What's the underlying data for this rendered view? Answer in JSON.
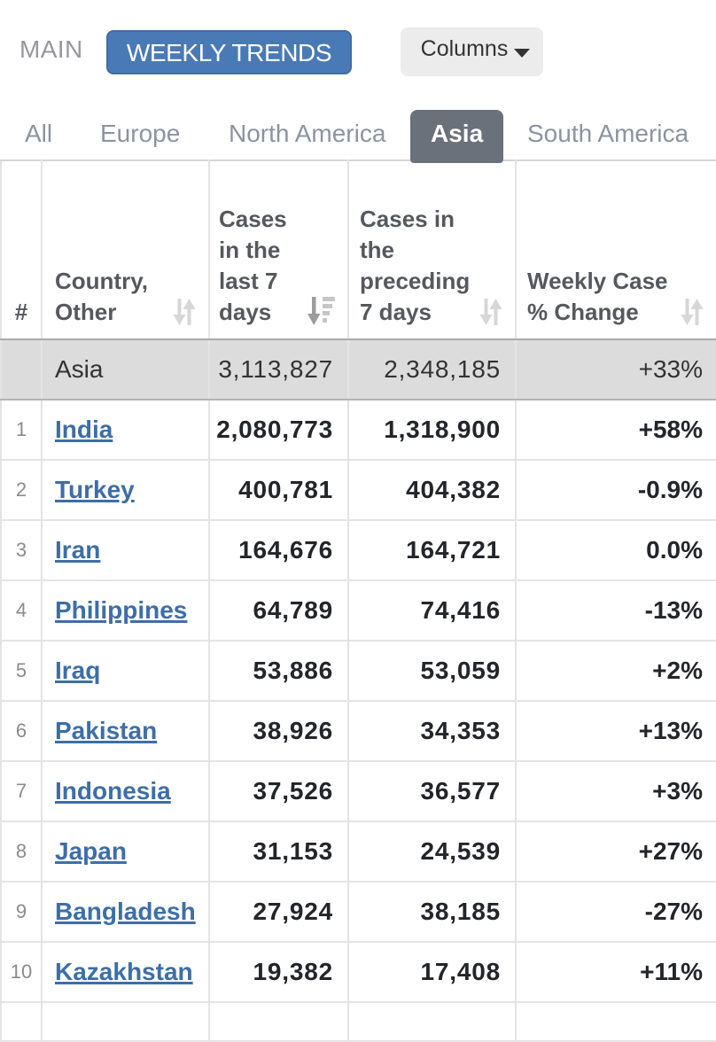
{
  "toolbar": {
    "main_label": "MAIN",
    "weekly_trends_label": "WEEKLY TRENDS",
    "columns_label": "Columns",
    "weekly_button_color": "#4a7ab5",
    "columns_button_color": "#ececec"
  },
  "tabs": {
    "active_tab": "Asia",
    "active_bg_color": "#6b717b",
    "items": [
      {
        "label": "All",
        "active": false
      },
      {
        "label": "Europe",
        "active": false
      },
      {
        "label": "North America",
        "active": false
      },
      {
        "label": "Asia",
        "active": true
      },
      {
        "label": "South America",
        "active": false
      }
    ]
  },
  "table": {
    "headers": {
      "rank": "#",
      "country": "Country,\nOther",
      "cases_last_7": "Cases\nin the\nlast 7\ndays",
      "cases_preceding_7": "Cases in\nthe\npreceding\n7 days",
      "weekly_change": "Weekly Case\n% Change"
    },
    "sort": {
      "sorted_by": "cases_last_7",
      "direction": "descending"
    },
    "total_row": {
      "label": "Asia",
      "cases_last_7": "3,113,827",
      "cases_preceding_7": "2,348,185",
      "weekly_change": "+33%"
    },
    "rows": [
      {
        "rank": "1",
        "country": "India",
        "cases_last_7": "2,080,773",
        "cases_preceding_7": "1,318,900",
        "weekly_change": "+58%"
      },
      {
        "rank": "2",
        "country": "Turkey",
        "cases_last_7": "400,781",
        "cases_preceding_7": "404,382",
        "weekly_change": "-0.9%"
      },
      {
        "rank": "3",
        "country": "Iran",
        "cases_last_7": "164,676",
        "cases_preceding_7": "164,721",
        "weekly_change": "0.0%"
      },
      {
        "rank": "4",
        "country": "Philippines",
        "cases_last_7": "64,789",
        "cases_preceding_7": "74,416",
        "weekly_change": "-13%"
      },
      {
        "rank": "5",
        "country": "Iraq",
        "cases_last_7": "53,886",
        "cases_preceding_7": "53,059",
        "weekly_change": "+2%"
      },
      {
        "rank": "6",
        "country": "Pakistan",
        "cases_last_7": "38,926",
        "cases_preceding_7": "34,353",
        "weekly_change": "+13%"
      },
      {
        "rank": "7",
        "country": "Indonesia",
        "cases_last_7": "37,526",
        "cases_preceding_7": "36,577",
        "weekly_change": "+3%"
      },
      {
        "rank": "8",
        "country": "Japan",
        "cases_last_7": "31,153",
        "cases_preceding_7": "24,539",
        "weekly_change": "+27%"
      },
      {
        "rank": "9",
        "country": "Bangladesh",
        "cases_last_7": "27,924",
        "cases_preceding_7": "38,185",
        "weekly_change": "-27%"
      },
      {
        "rank": "10",
        "country": "Kazakhstan",
        "cases_last_7": "19,382",
        "cases_preceding_7": "17,408",
        "weekly_change": "+11%"
      }
    ]
  }
}
